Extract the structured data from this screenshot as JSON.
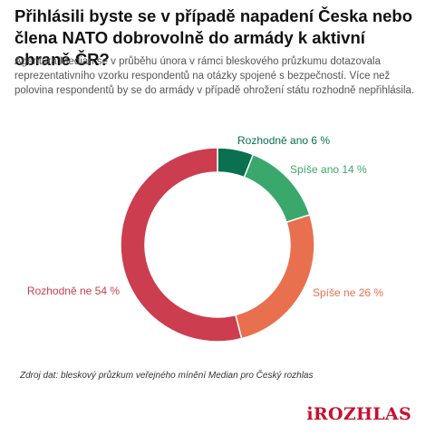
{
  "title": "Přihlásili byste se v případě napadení Česka nebo člena NATO dobrovolně do armády k aktivní obraně ČR?",
  "subtitle": "Agentura Median se v průběhu února v rámci bleskového průzkumu dotazovala reprezentativního vzorku respondentů na otázky spojené s bezpečností. Více než polovina respondentů by se do armády v případě ohrožení státu rozhodně nepřihlásila.",
  "source": "Zdroj dat: bleskový průzkum veřejného mínění Median pro Český rozhlas",
  "logo": "iROZHLAS",
  "logo_color": "#c8102e",
  "chart_data": {
    "type": "pie",
    "donut": true,
    "categories": [
      "Rozhodně ano",
      "Spíše ano",
      "Spíše ne",
      "Rozhodně ne"
    ],
    "values": [
      6,
      14,
      26,
      54
    ],
    "unit": "%",
    "labels": [
      "Rozhodně ano 6 %",
      "Spíše ano 14 %",
      "Spíše ne 26 %",
      "Rozhodně ne 54 %"
    ],
    "colors": [
      "#0a7050",
      "#3aa86b",
      "#e8704f",
      "#cc3d4f"
    ],
    "start_angle": "top",
    "direction": "clockwise"
  }
}
